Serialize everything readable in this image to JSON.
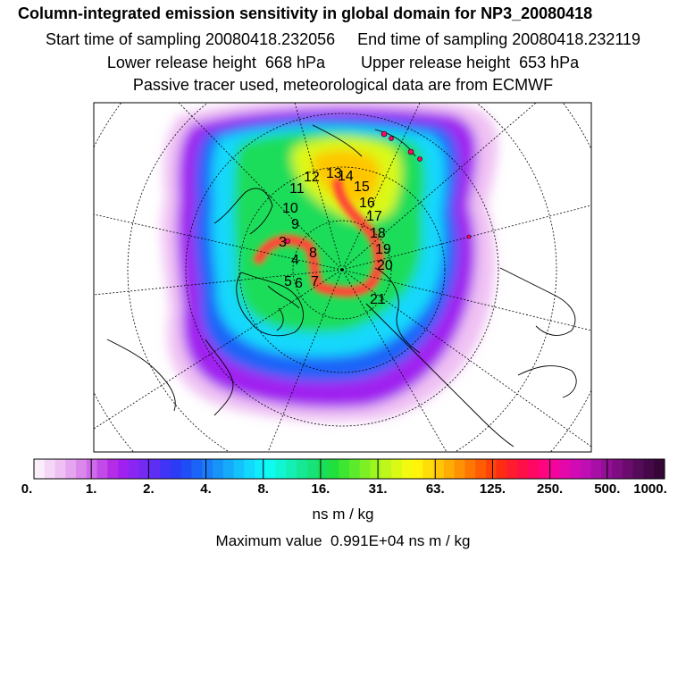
{
  "header": {
    "title": "Column-integrated emission sensitivity in global domain for NP3_20080418",
    "sampling_line": "Start time of sampling 20080418.232056     End time of sampling 20080418.232119",
    "release_line": "Lower release height  668 hPa        Upper release height  653 hPa",
    "tracer_line": "Passive tracer used, meteorological data are from ECMWF"
  },
  "map": {
    "projection": "north polar stereographic",
    "track_labels": [
      "3",
      "4",
      "5",
      "6",
      "7",
      "8",
      "9",
      "10",
      "11",
      "12",
      "13",
      "14",
      "15",
      "16",
      "17",
      "18",
      "19",
      "20",
      "21"
    ]
  },
  "colorbar": {
    "tick_labels": [
      "0.",
      "1.",
      "2.",
      "4.",
      "8.",
      "16.",
      "31.",
      "63.",
      "125.",
      "250.",
      "500.",
      "1000."
    ],
    "colors": [
      "#fbeefb",
      "#f6d6f7",
      "#efc1f3",
      "#e6a5ef",
      "#dc87ec",
      "#cf6bea",
      "#c24ae8",
      "#b52ce6",
      "#a020f0",
      "#8a26f2",
      "#742af3",
      "#5e2ef5",
      "#4034f6",
      "#2b3bf6",
      "#1f4ef7",
      "#1c64f8",
      "#1a7cf8",
      "#1894f9",
      "#16aafa",
      "#14c2fb",
      "#12d8fc",
      "#11ecfd",
      "#10fbf0",
      "#12f5d2",
      "#14efb4",
      "#16e996",
      "#18e378",
      "#1add5a",
      "#1fe03c",
      "#3de630",
      "#5ceb2a",
      "#7cf024",
      "#9df51e",
      "#bdf81a",
      "#daf915",
      "#f3fa10",
      "#fff40a",
      "#ffdd08",
      "#ffc606",
      "#ffad05",
      "#ff9204",
      "#ff7703",
      "#ff5c04",
      "#ff4208",
      "#ff2c14",
      "#ff1c2e",
      "#ff0f48",
      "#ff0864",
      "#ff0580",
      "#f2059a",
      "#e407aa",
      "#d20ab4",
      "#be0eb4",
      "#a80fa6",
      "#930f95",
      "#7e0d82",
      "#6a0b6e",
      "#560a5a",
      "#450848",
      "#360637"
    ],
    "units": "ns m / kg"
  },
  "max_value": "Maximum value  0.991E+04 ns m / kg"
}
